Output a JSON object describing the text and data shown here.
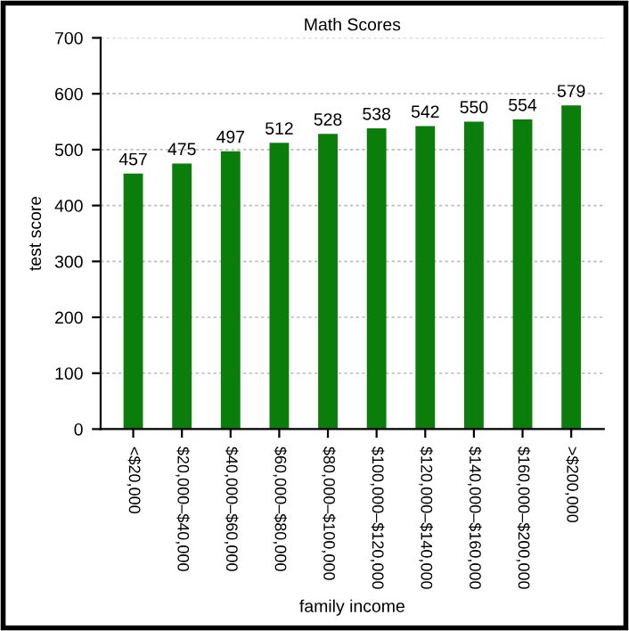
{
  "chart_data": {
    "type": "bar",
    "title": "Math Scores",
    "xlabel": "family income",
    "ylabel": "test score",
    "categories": [
      "<$20,000",
      "$20,000–$40,000",
      "$40,000–$60,000",
      "$60,000–$80,000",
      "$80,000–$100,000",
      "$100,000–$120,000",
      "$120,000–$140,000",
      "$140,000–$160,000",
      "$160,000–$200,000",
      ">$200,000"
    ],
    "values": [
      457,
      475,
      497,
      512,
      528,
      538,
      542,
      550,
      554,
      579
    ],
    "color": "#0a7d0a",
    "ylim": [
      0,
      700
    ],
    "yticks": [
      0,
      100,
      200,
      300,
      400,
      500,
      600,
      700
    ],
    "grid": "y",
    "data_labels": true
  }
}
